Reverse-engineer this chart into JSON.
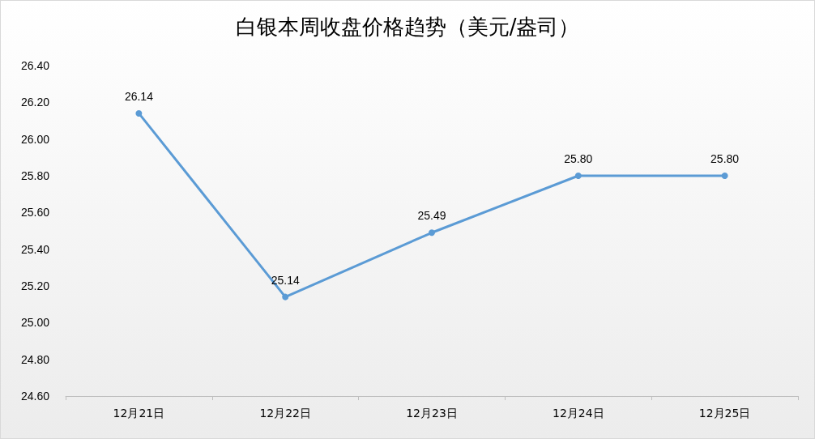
{
  "chart_data": {
    "type": "line",
    "title": "白银本周收盘价格趋势（美元/盎司）",
    "categories": [
      "12月21日",
      "12月22日",
      "12月23日",
      "12月24日",
      "12月25日"
    ],
    "series": [
      {
        "color": "#5b9bd5",
        "values": [
          26.14,
          25.14,
          25.49,
          25.8,
          25.8
        ],
        "value_labels": [
          "26.14",
          "25.14",
          "25.49",
          "25.80",
          "25.80"
        ]
      }
    ],
    "ylim": [
      24.6,
      26.4
    ],
    "yticks": [
      {
        "value": 24.6,
        "label": "24.60"
      },
      {
        "value": 24.8,
        "label": "24.80"
      },
      {
        "value": 25.0,
        "label": "25.00"
      },
      {
        "value": 25.2,
        "label": "25.20"
      },
      {
        "value": 25.4,
        "label": "25.40"
      },
      {
        "value": 25.6,
        "label": "25.60"
      },
      {
        "value": 25.8,
        "label": "25.80"
      },
      {
        "value": 26.0,
        "label": "26.00"
      },
      {
        "value": 26.2,
        "label": "26.20"
      },
      {
        "value": 26.4,
        "label": "26.40"
      }
    ],
    "grid": false,
    "marker": "circle",
    "line_style": "solid"
  }
}
